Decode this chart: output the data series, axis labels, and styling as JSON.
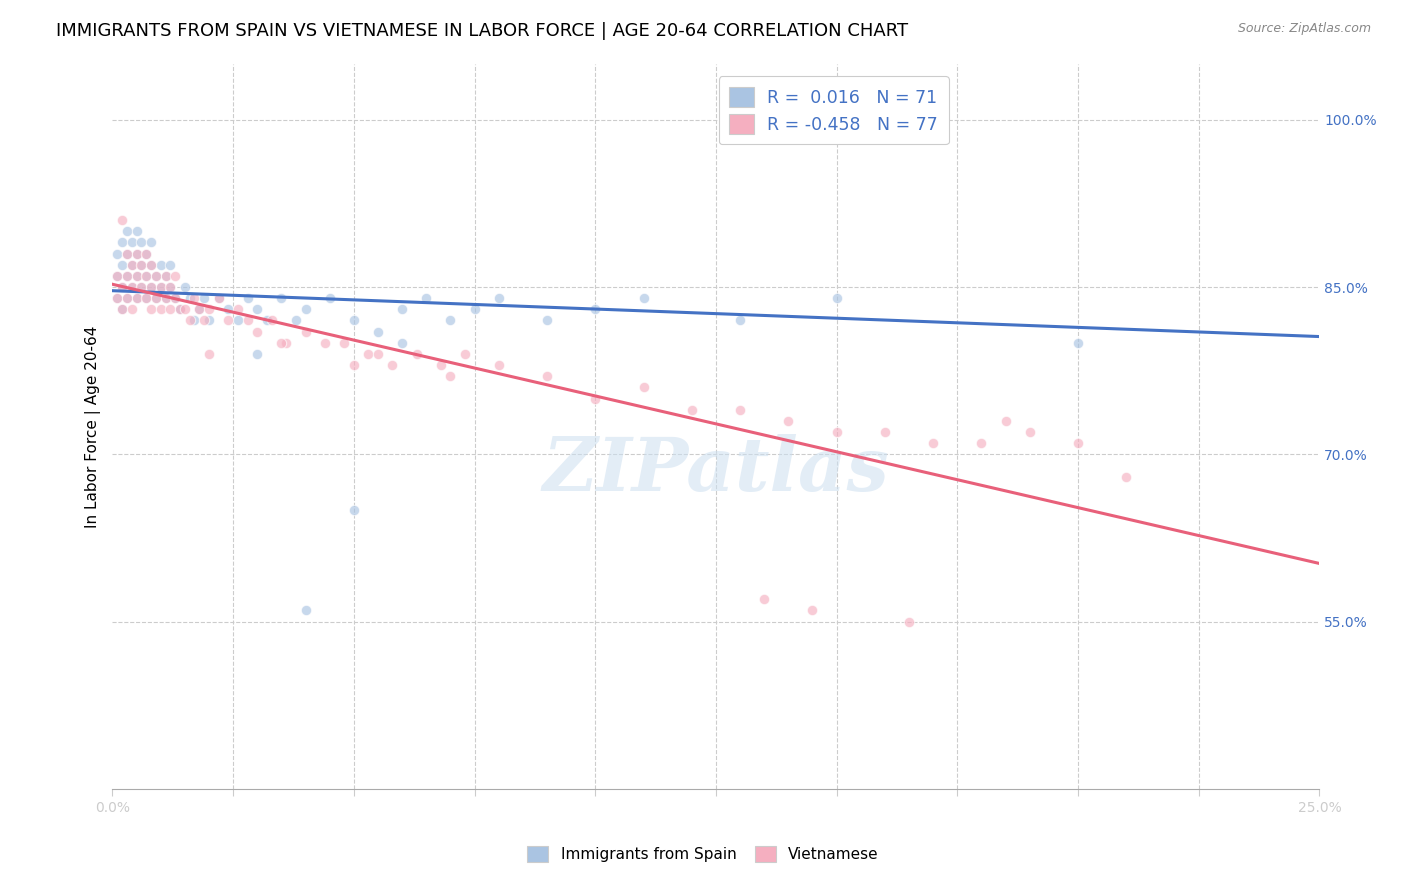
{
  "title": "IMMIGRANTS FROM SPAIN VS VIETNAMESE IN LABOR FORCE | AGE 20-64 CORRELATION CHART",
  "source": "Source: ZipAtlas.com",
  "ylabel": "In Labor Force | Age 20-64",
  "xlim": [
    0.0,
    0.25
  ],
  "ylim": [
    0.4,
    1.05
  ],
  "xticks": [
    0.0,
    0.025,
    0.05,
    0.075,
    0.1,
    0.125,
    0.15,
    0.175,
    0.2,
    0.225,
    0.25
  ],
  "xticklabels": [
    "0.0%",
    "",
    "",
    "",
    "",
    "",
    "",
    "",
    "",
    "",
    "25.0%"
  ],
  "yticks_right": [
    0.55,
    0.7,
    0.85,
    1.0
  ],
  "ytick_labels_right": [
    "55.0%",
    "70.0%",
    "85.0%",
    "100.0%"
  ],
  "color_spain": "#aac4e2",
  "color_viet": "#f5afc0",
  "line_color_spain": "#4472c4",
  "line_color_viet": "#e8607a",
  "watermark": "ZIPatlas",
  "spain_x": [
    0.001,
    0.001,
    0.001,
    0.002,
    0.002,
    0.002,
    0.002,
    0.003,
    0.003,
    0.003,
    0.003,
    0.004,
    0.004,
    0.004,
    0.005,
    0.005,
    0.005,
    0.005,
    0.006,
    0.006,
    0.006,
    0.007,
    0.007,
    0.007,
    0.008,
    0.008,
    0.008,
    0.009,
    0.009,
    0.01,
    0.01,
    0.011,
    0.011,
    0.012,
    0.012,
    0.013,
    0.014,
    0.015,
    0.016,
    0.017,
    0.018,
    0.019,
    0.02,
    0.022,
    0.024,
    0.026,
    0.028,
    0.03,
    0.032,
    0.035,
    0.038,
    0.04,
    0.045,
    0.05,
    0.055,
    0.06,
    0.065,
    0.07,
    0.075,
    0.08,
    0.09,
    0.1,
    0.11,
    0.13,
    0.15,
    0.03,
    0.06,
    0.05,
    0.2,
    0.165,
    0.04
  ],
  "spain_y": [
    0.84,
    0.86,
    0.88,
    0.83,
    0.85,
    0.87,
    0.89,
    0.84,
    0.86,
    0.88,
    0.9,
    0.85,
    0.87,
    0.89,
    0.84,
    0.86,
    0.88,
    0.9,
    0.85,
    0.87,
    0.89,
    0.84,
    0.86,
    0.88,
    0.85,
    0.87,
    0.89,
    0.84,
    0.86,
    0.85,
    0.87,
    0.84,
    0.86,
    0.85,
    0.87,
    0.84,
    0.83,
    0.85,
    0.84,
    0.82,
    0.83,
    0.84,
    0.82,
    0.84,
    0.83,
    0.82,
    0.84,
    0.83,
    0.82,
    0.84,
    0.82,
    0.83,
    0.84,
    0.82,
    0.81,
    0.83,
    0.84,
    0.82,
    0.83,
    0.84,
    0.82,
    0.83,
    0.84,
    0.82,
    0.84,
    0.79,
    0.8,
    0.65,
    0.8,
    1.0,
    0.56
  ],
  "viet_x": [
    0.001,
    0.001,
    0.002,
    0.002,
    0.002,
    0.003,
    0.003,
    0.003,
    0.004,
    0.004,
    0.004,
    0.005,
    0.005,
    0.005,
    0.006,
    0.006,
    0.007,
    0.007,
    0.007,
    0.008,
    0.008,
    0.008,
    0.009,
    0.009,
    0.01,
    0.01,
    0.011,
    0.011,
    0.012,
    0.012,
    0.013,
    0.013,
    0.014,
    0.015,
    0.016,
    0.017,
    0.018,
    0.019,
    0.02,
    0.022,
    0.024,
    0.026,
    0.028,
    0.03,
    0.033,
    0.036,
    0.04,
    0.044,
    0.048,
    0.053,
    0.058,
    0.063,
    0.068,
    0.073,
    0.08,
    0.09,
    0.1,
    0.11,
    0.12,
    0.13,
    0.14,
    0.15,
    0.16,
    0.17,
    0.18,
    0.19,
    0.2,
    0.21,
    0.02,
    0.05,
    0.07,
    0.035,
    0.055,
    0.145,
    0.165,
    0.185,
    0.135
  ],
  "viet_y": [
    0.84,
    0.86,
    0.83,
    0.85,
    0.91,
    0.84,
    0.86,
    0.88,
    0.83,
    0.85,
    0.87,
    0.84,
    0.86,
    0.88,
    0.85,
    0.87,
    0.84,
    0.86,
    0.88,
    0.83,
    0.85,
    0.87,
    0.84,
    0.86,
    0.83,
    0.85,
    0.84,
    0.86,
    0.83,
    0.85,
    0.84,
    0.86,
    0.83,
    0.83,
    0.82,
    0.84,
    0.83,
    0.82,
    0.83,
    0.84,
    0.82,
    0.83,
    0.82,
    0.81,
    0.82,
    0.8,
    0.81,
    0.8,
    0.8,
    0.79,
    0.78,
    0.79,
    0.78,
    0.79,
    0.78,
    0.77,
    0.75,
    0.76,
    0.74,
    0.74,
    0.73,
    0.72,
    0.72,
    0.71,
    0.71,
    0.72,
    0.71,
    0.68,
    0.79,
    0.78,
    0.77,
    0.8,
    0.79,
    0.56,
    0.55,
    0.73,
    0.57
  ],
  "title_fontsize": 13,
  "axis_label_fontsize": 11,
  "tick_fontsize": 10,
  "dot_size": 55,
  "dot_alpha": 0.65,
  "dot_linewidth": 0.8,
  "dot_edgecolor": "white"
}
